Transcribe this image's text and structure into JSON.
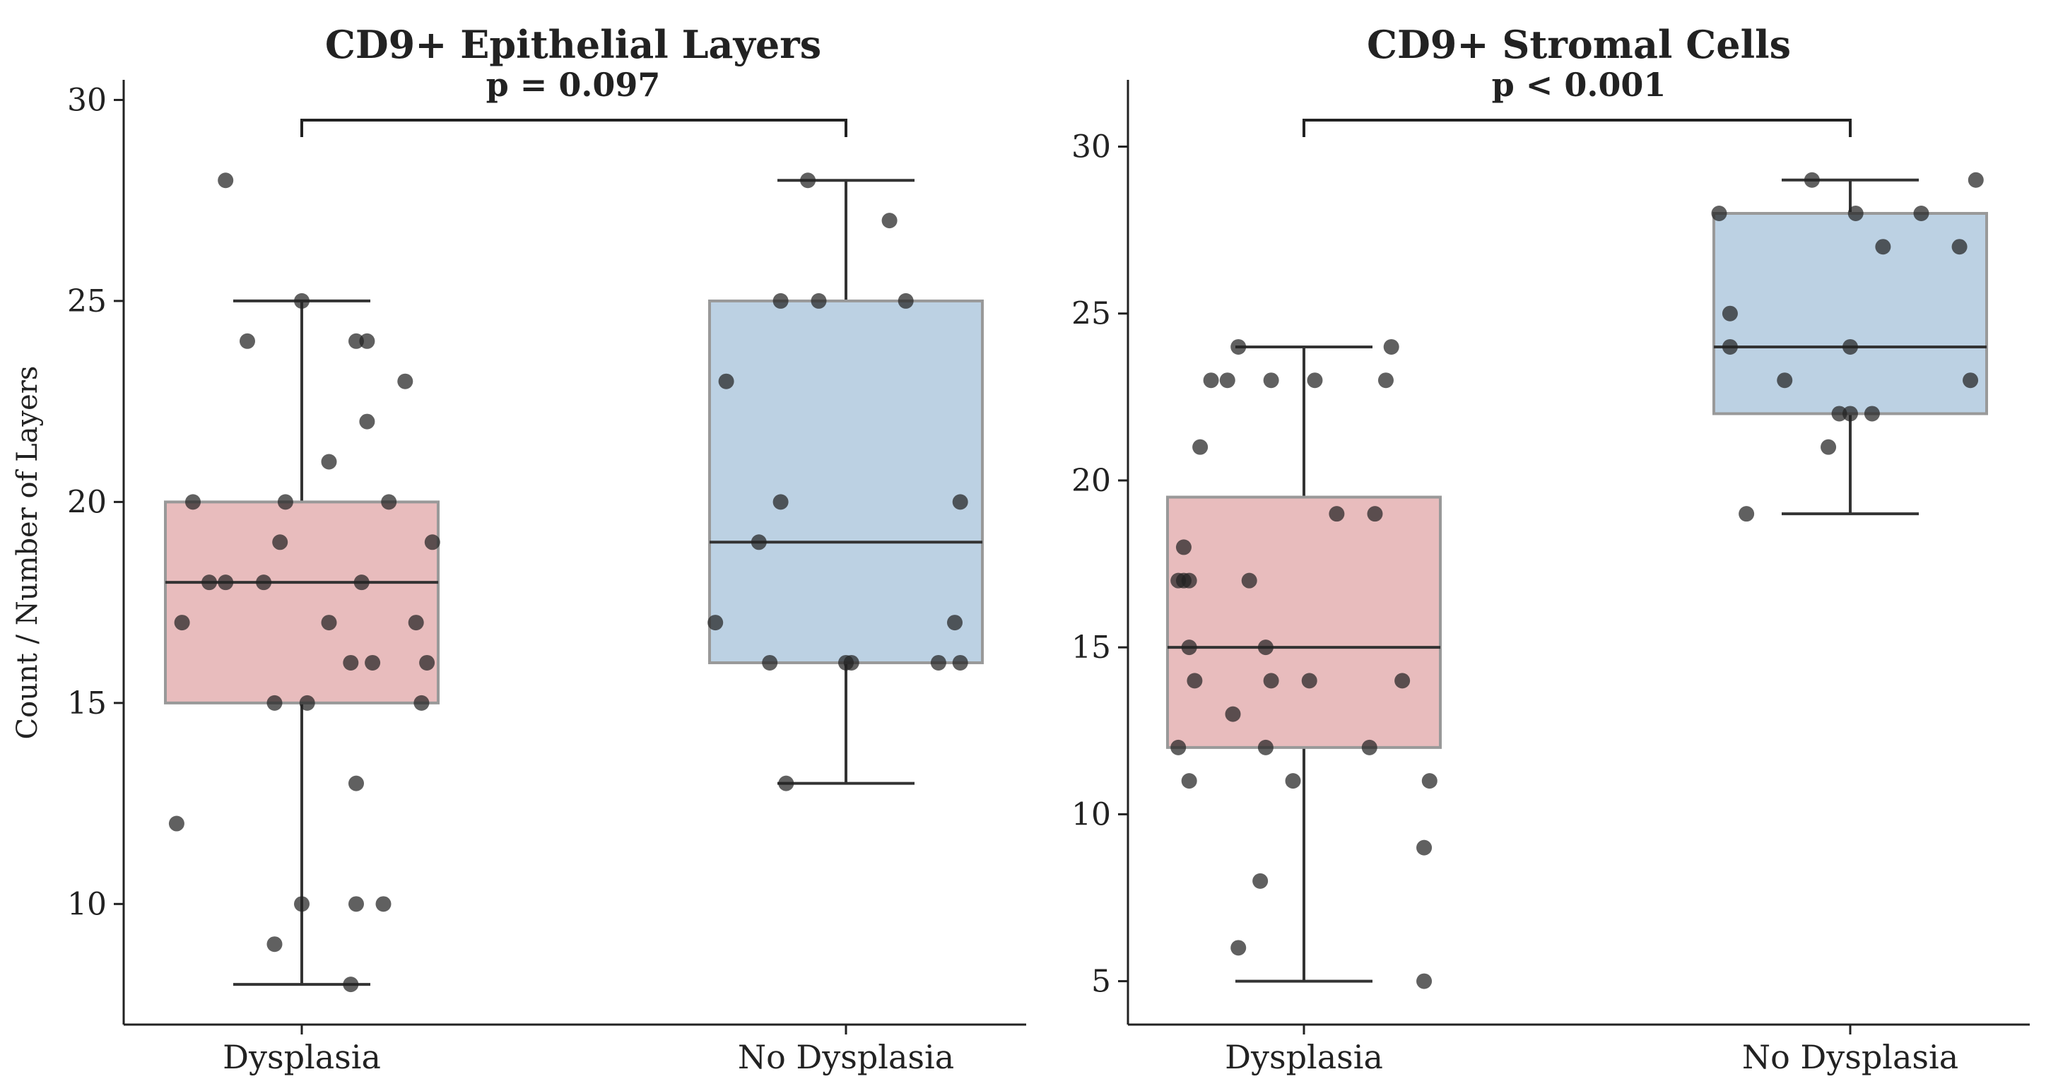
{
  "chart_data": [
    {
      "type": "box",
      "title": "CD9+ Epithelial Layers",
      "p_value": "p = 0.097",
      "ylabel": "Count / Number of Layers",
      "xlabel": "",
      "ylim": [
        7,
        30.5
      ],
      "yticks": [
        "10",
        "15",
        "20",
        "25",
        "30"
      ],
      "categories": [
        "Dysplasia",
        "No Dysplasia"
      ],
      "boxes": [
        {
          "category": "Dysplasia",
          "color": "#e8bcbd",
          "whisker_low": 8,
          "q1": 15,
          "median": 18,
          "q3": 20,
          "whisker_high": 25,
          "points": [
            {
              "dx": -0.14,
              "y": 28
            },
            {
              "dx": -0.1,
              "y": 24
            },
            {
              "dx": 0.0,
              "y": 25
            },
            {
              "dx": 0.1,
              "y": 24
            },
            {
              "dx": 0.12,
              "y": 24
            },
            {
              "dx": 0.19,
              "y": 23
            },
            {
              "dx": 0.12,
              "y": 22
            },
            {
              "dx": 0.05,
              "y": 21
            },
            {
              "dx": -0.2,
              "y": 20
            },
            {
              "dx": -0.03,
              "y": 20
            },
            {
              "dx": 0.16,
              "y": 20
            },
            {
              "dx": -0.04,
              "y": 19
            },
            {
              "dx": 0.24,
              "y": 19
            },
            {
              "dx": -0.17,
              "y": 18
            },
            {
              "dx": -0.14,
              "y": 18
            },
            {
              "dx": -0.07,
              "y": 18
            },
            {
              "dx": 0.11,
              "y": 18
            },
            {
              "dx": -0.22,
              "y": 17
            },
            {
              "dx": 0.05,
              "y": 17
            },
            {
              "dx": 0.21,
              "y": 17
            },
            {
              "dx": 0.09,
              "y": 16
            },
            {
              "dx": 0.13,
              "y": 16
            },
            {
              "dx": 0.23,
              "y": 16
            },
            {
              "dx": -0.05,
              "y": 15
            },
            {
              "dx": 0.01,
              "y": 15
            },
            {
              "dx": 0.22,
              "y": 15
            },
            {
              "dx": 0.1,
              "y": 13
            },
            {
              "dx": -0.23,
              "y": 12
            },
            {
              "dx": 0.0,
              "y": 10
            },
            {
              "dx": 0.1,
              "y": 10
            },
            {
              "dx": 0.15,
              "y": 10
            },
            {
              "dx": -0.05,
              "y": 9
            },
            {
              "dx": 0.09,
              "y": 8
            }
          ]
        },
        {
          "category": "No Dysplasia",
          "color": "#bcd1e3",
          "whisker_low": 13,
          "q1": 16,
          "median": 19,
          "q3": 25,
          "whisker_high": 28,
          "points": [
            {
              "dx": -0.07,
              "y": 28
            },
            {
              "dx": 0.08,
              "y": 27
            },
            {
              "dx": -0.12,
              "y": 25
            },
            {
              "dx": -0.05,
              "y": 25
            },
            {
              "dx": 0.11,
              "y": 25
            },
            {
              "dx": -0.22,
              "y": 23
            },
            {
              "dx": -0.12,
              "y": 20
            },
            {
              "dx": 0.21,
              "y": 20
            },
            {
              "dx": -0.16,
              "y": 19
            },
            {
              "dx": -0.24,
              "y": 17
            },
            {
              "dx": 0.2,
              "y": 17
            },
            {
              "dx": -0.14,
              "y": 16
            },
            {
              "dx": 0.0,
              "y": 16
            },
            {
              "dx": 0.01,
              "y": 16
            },
            {
              "dx": 0.17,
              "y": 16
            },
            {
              "dx": 0.21,
              "y": 16
            },
            {
              "dx": -0.11,
              "y": 13
            }
          ]
        }
      ]
    },
    {
      "type": "box",
      "title": "CD9+ Stromal Cells",
      "p_value": "p < 0.001",
      "ylabel": "",
      "xlabel": "",
      "ylim": [
        3.7,
        32
      ],
      "yticks": [
        "5",
        "10",
        "15",
        "20",
        "25",
        "30"
      ],
      "categories": [
        "Dysplasia",
        "No Dysplasia"
      ],
      "boxes": [
        {
          "category": "Dysplasia",
          "color": "#e8bcbd",
          "whisker_low": 5,
          "q1": 12,
          "median": 15,
          "q3": 19.5,
          "whisker_high": 24,
          "points": [
            {
              "dx": -0.12,
              "y": 24
            },
            {
              "dx": 0.16,
              "y": 24
            },
            {
              "dx": -0.17,
              "y": 23
            },
            {
              "dx": -0.14,
              "y": 23
            },
            {
              "dx": -0.06,
              "y": 23
            },
            {
              "dx": 0.02,
              "y": 23
            },
            {
              "dx": 0.15,
              "y": 23
            },
            {
              "dx": -0.19,
              "y": 21
            },
            {
              "dx": 0.06,
              "y": 19
            },
            {
              "dx": 0.13,
              "y": 19
            },
            {
              "dx": -0.22,
              "y": 18
            },
            {
              "dx": -0.23,
              "y": 17
            },
            {
              "dx": -0.22,
              "y": 17
            },
            {
              "dx": -0.21,
              "y": 17
            },
            {
              "dx": -0.1,
              "y": 17
            },
            {
              "dx": -0.21,
              "y": 15
            },
            {
              "dx": -0.07,
              "y": 15
            },
            {
              "dx": -0.2,
              "y": 14
            },
            {
              "dx": -0.06,
              "y": 14
            },
            {
              "dx": 0.01,
              "y": 14
            },
            {
              "dx": 0.18,
              "y": 14
            },
            {
              "dx": -0.13,
              "y": 13
            },
            {
              "dx": -0.23,
              "y": 12
            },
            {
              "dx": -0.07,
              "y": 12
            },
            {
              "dx": 0.12,
              "y": 12
            },
            {
              "dx": -0.21,
              "y": 11
            },
            {
              "dx": -0.02,
              "y": 11
            },
            {
              "dx": 0.23,
              "y": 11
            },
            {
              "dx": 0.22,
              "y": 9
            },
            {
              "dx": -0.08,
              "y": 8
            },
            {
              "dx": -0.12,
              "y": 6
            },
            {
              "dx": 0.22,
              "y": 5
            }
          ]
        },
        {
          "category": "No Dysplasia",
          "color": "#bcd1e3",
          "whisker_low": 19,
          "q1": 22,
          "median": 24,
          "q3": 28,
          "whisker_high": 29,
          "points": [
            {
              "dx": -0.07,
              "y": 29
            },
            {
              "dx": 0.23,
              "y": 29
            },
            {
              "dx": -0.24,
              "y": 28
            },
            {
              "dx": 0.01,
              "y": 28
            },
            {
              "dx": 0.13,
              "y": 28
            },
            {
              "dx": 0.06,
              "y": 27
            },
            {
              "dx": 0.2,
              "y": 27
            },
            {
              "dx": -0.22,
              "y": 25
            },
            {
              "dx": -0.22,
              "y": 24
            },
            {
              "dx": 0.0,
              "y": 24
            },
            {
              "dx": -0.12,
              "y": 23
            },
            {
              "dx": 0.22,
              "y": 23
            },
            {
              "dx": -0.02,
              "y": 22
            },
            {
              "dx": 0.0,
              "y": 22
            },
            {
              "dx": 0.04,
              "y": 22
            },
            {
              "dx": -0.04,
              "y": 21
            },
            {
              "dx": -0.19,
              "y": 19
            }
          ]
        }
      ]
    }
  ]
}
